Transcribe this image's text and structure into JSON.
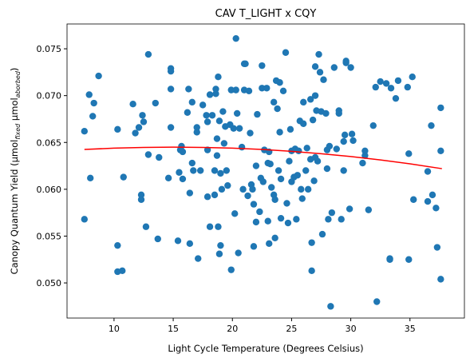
{
  "chart_data": {
    "type": "scatter",
    "title": "CAV T_LIGHT x CQY",
    "x_label": "Light Cycle Temperature (Degrees Celsius)",
    "y_label": [
      "Canopy Quantum Yield (μmol",
      "fixed",
      " μmol",
      "aborbed",
      ")"
    ],
    "xlim": [
      6.03,
      39.6
    ],
    "ylim": [
      0.04625,
      0.07765
    ],
    "xticks": [
      10,
      15,
      20,
      25,
      30,
      35
    ],
    "yticks": [
      {
        "value": 0.05,
        "label": "0.050"
      },
      0.055,
      {
        "value": 0.06,
        "label": "0.060"
      },
      0.065,
      {
        "value": 0.07,
        "label": "0.070"
      },
      0.075
    ],
    "series": [
      {
        "type": "scatter",
        "color": "#1f77b4",
        "x": [
          7.5,
          7.5,
          7.9,
          8.0,
          8.2,
          8.3,
          8.7,
          10.3,
          10.3,
          10.3,
          10.7,
          10.8,
          11.6,
          11.8,
          12.1,
          12.3,
          12.3,
          12.4,
          12.5,
          12.7,
          12.9,
          12.9,
          13.5,
          13.7,
          13.8,
          14.6,
          14.8,
          14.8,
          14.8,
          14.8,
          15.4,
          15.5,
          15.6,
          15.7,
          15.8,
          15.8,
          16.2,
          16.3,
          16.4,
          16.4,
          16.6,
          16.6,
          16.7,
          17.0,
          17.0,
          17.1,
          17.3,
          17.5,
          17.8,
          17.9,
          17.9,
          17.9,
          18.1,
          18.1,
          18.3,
          18.5,
          18.5,
          18.6,
          18.6,
          18.7,
          18.7,
          18.8,
          18.8,
          18.9,
          18.9,
          19.0,
          19.0,
          19.1,
          19.2,
          19.3,
          19.4,
          19.5,
          19.6,
          19.8,
          19.9,
          19.9,
          20.1,
          20.2,
          20.3,
          20.3,
          20.4,
          20.5,
          20.6,
          20.8,
          20.9,
          21.0,
          21.0,
          21.1,
          21.3,
          21.4,
          21.5,
          21.6,
          21.7,
          21.8,
          21.8,
          22.0,
          22.0,
          22.1,
          22.3,
          22.4,
          22.5,
          22.5,
          22.6,
          22.7,
          22.9,
          23.0,
          23.0,
          23.1,
          23.1,
          23.2,
          23.3,
          23.5,
          23.5,
          23.6,
          23.6,
          23.7,
          23.8,
          23.9,
          24.0,
          24.0,
          24.1,
          24.1,
          24.3,
          24.5,
          24.6,
          24.7,
          24.8,
          24.9,
          25.0,
          25.0,
          25.2,
          25.3,
          25.3,
          25.4,
          25.5,
          25.6,
          25.7,
          25.8,
          25.9,
          26.0,
          26.0,
          26.2,
          26.3,
          26.4,
          26.6,
          26.6,
          26.7,
          26.7,
          26.8,
          26.9,
          27.0,
          27.0,
          27.0,
          27.1,
          27.2,
          27.3,
          27.4,
          27.5,
          27.6,
          27.7,
          27.9,
          28.0,
          28.0,
          28.1,
          28.2,
          28.3,
          28.4,
          28.6,
          28.8,
          29.0,
          29.0,
          29.2,
          29.4,
          29.4,
          29.5,
          29.6,
          29.6,
          29.9,
          30.0,
          30.1,
          30.2,
          31.0,
          31.2,
          31.2,
          31.5,
          31.9,
          32.1,
          32.2,
          32.5,
          33.0,
          33.3,
          33.3,
          33.4,
          33.8,
          34.0,
          34.8,
          34.9,
          34.9,
          35.2,
          35.3,
          36.5,
          36.5,
          36.8,
          36.9,
          37.2,
          37.3,
          37.6,
          37.6,
          37.6
        ],
        "values": [
          0.0662,
          0.0568,
          0.0701,
          0.0612,
          0.0678,
          0.0692,
          0.0721,
          0.0664,
          0.054,
          0.0512,
          0.0513,
          0.0613,
          0.0691,
          0.066,
          0.0666,
          0.0594,
          0.0589,
          0.0679,
          0.0672,
          0.056,
          0.0744,
          0.0637,
          0.0692,
          0.0547,
          0.0634,
          0.0612,
          0.0729,
          0.0726,
          0.0707,
          0.0666,
          0.0545,
          0.0618,
          0.0642,
          0.0646,
          0.064,
          0.0611,
          0.0682,
          0.0707,
          0.0596,
          0.0542,
          0.0693,
          0.0628,
          0.062,
          0.0666,
          0.0661,
          0.0526,
          0.062,
          0.069,
          0.0679,
          0.0672,
          0.0642,
          0.0592,
          0.0701,
          0.056,
          0.0679,
          0.0594,
          0.062,
          0.0702,
          0.0707,
          0.0636,
          0.0654,
          0.056,
          0.072,
          0.0673,
          0.0531,
          0.054,
          0.0617,
          0.06,
          0.0683,
          0.0649,
          0.0667,
          0.062,
          0.0604,
          0.0669,
          0.0706,
          0.0514,
          0.0665,
          0.0574,
          0.0761,
          0.0706,
          0.0681,
          0.0532,
          0.0665,
          0.0645,
          0.06,
          0.0734,
          0.0706,
          0.0734,
          0.0593,
          0.0705,
          0.066,
          0.0605,
          0.06,
          0.0539,
          0.0584,
          0.0625,
          0.0565,
          0.068,
          0.0576,
          0.0612,
          0.0708,
          0.0732,
          0.0608,
          0.0642,
          0.0708,
          0.0628,
          0.0566,
          0.0542,
          0.064,
          0.0627,
          0.0602,
          0.0693,
          0.0594,
          0.0589,
          0.0548,
          0.0716,
          0.0686,
          0.062,
          0.0714,
          0.0661,
          0.0611,
          0.0569,
          0.0705,
          0.0746,
          0.0585,
          0.0564,
          0.063,
          0.0664,
          0.0641,
          0.0608,
          0.0613,
          0.0643,
          0.0643,
          0.0568,
          0.0615,
          0.0641,
          0.0673,
          0.06,
          0.059,
          0.0693,
          0.067,
          0.062,
          0.0644,
          0.06,
          0.0696,
          0.0632,
          0.0543,
          0.0513,
          0.0674,
          0.0609,
          0.0731,
          0.07,
          0.0634,
          0.0684,
          0.063,
          0.0744,
          0.0725,
          0.0683,
          0.0552,
          0.0717,
          0.0681,
          0.0622,
          0.0642,
          0.0568,
          0.0646,
          0.0475,
          0.0575,
          0.073,
          0.0643,
          0.0684,
          0.0681,
          0.0568,
          0.062,
          0.0651,
          0.0658,
          0.0735,
          0.0737,
          0.0579,
          0.073,
          0.0659,
          0.0652,
          0.0628,
          0.0641,
          0.0636,
          0.0578,
          0.0668,
          0.0709,
          0.048,
          0.0715,
          0.0713,
          0.0526,
          0.0525,
          0.0708,
          0.0697,
          0.0716,
          0.0709,
          0.0525,
          0.0638,
          0.072,
          0.0589,
          0.0619,
          0.0587,
          0.0668,
          0.0594,
          0.058,
          0.0538,
          0.0504,
          0.0687,
          0.0641
        ]
      },
      {
        "type": "line",
        "color": "#ff0000",
        "x": [
          7.5,
          10,
          12.5,
          15,
          17.5,
          20,
          22.5,
          25,
          27.5,
          30,
          32.5,
          35,
          37.7
        ],
        "values": [
          0.06425,
          0.06439,
          0.06447,
          0.0645,
          0.06447,
          0.06439,
          0.06425,
          0.06405,
          0.0638,
          0.0635,
          0.06313,
          0.06272,
          0.0622
        ]
      }
    ]
  }
}
